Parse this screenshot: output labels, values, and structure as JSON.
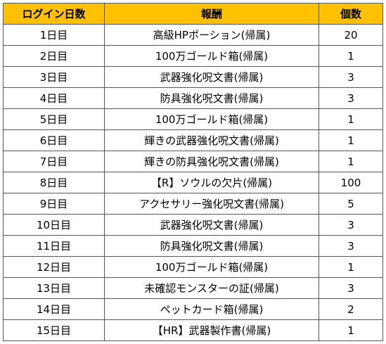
{
  "header_color": "#ffc000",
  "columns": {
    "day": "ログイン日数",
    "reward": "報酬",
    "count": "個数"
  },
  "rows": [
    {
      "day": "1日目",
      "reward": "高級HPポーション(帰属)",
      "count": "20"
    },
    {
      "day": "2日目",
      "reward": "100万ゴールド箱(帰属)",
      "count": "1"
    },
    {
      "day": "3日目",
      "reward": "武器強化呪文書(帰属)",
      "count": "3"
    },
    {
      "day": "4日目",
      "reward": "防具強化呪文書(帰属)",
      "count": "3"
    },
    {
      "day": "5日目",
      "reward": "100万ゴールド箱(帰属)",
      "count": "1"
    },
    {
      "day": "6日目",
      "reward": "輝きの武器強化呪文書(帰属)",
      "count": "1"
    },
    {
      "day": "7日目",
      "reward": "輝きの防具強化呪文書(帰属)",
      "count": "1"
    },
    {
      "day": "8日目",
      "reward": "【R】ソウルの欠片(帰属)",
      "count": "100"
    },
    {
      "day": "9日目",
      "reward": "アクセサリー強化呪文書(帰属)",
      "count": "5"
    },
    {
      "day": "10日目",
      "reward": "武器強化呪文書(帰属)",
      "count": "3"
    },
    {
      "day": "11日目",
      "reward": "防具強化呪文書(帰属)",
      "count": "3"
    },
    {
      "day": "12日目",
      "reward": "100万ゴールド箱(帰属)",
      "count": "1"
    },
    {
      "day": "13日目",
      "reward": "未確認モンスターの証(帰属)",
      "count": "3"
    },
    {
      "day": "14日目",
      "reward": "ペットカード箱(帰属)",
      "count": "2"
    },
    {
      "day": "15日目",
      "reward": "【HR】武器製作書(帰属)",
      "count": "1"
    }
  ]
}
